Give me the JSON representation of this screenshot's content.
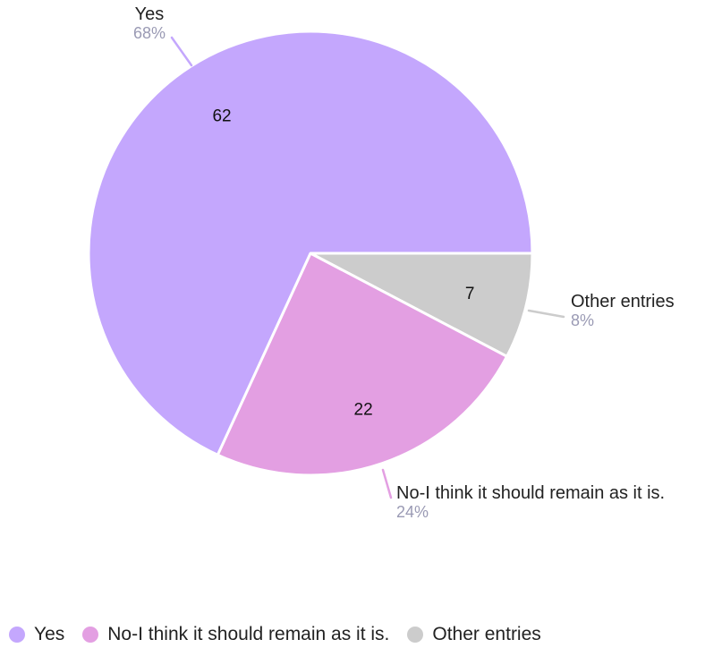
{
  "chart_data": {
    "type": "pie",
    "title": "",
    "slices": [
      {
        "label": "Yes",
        "value": 62,
        "percent": "68%",
        "color": "#c4a7fd"
      },
      {
        "label": "No-I think it should remain as it is.",
        "value": 22,
        "percent": "24%",
        "color": "#e39fe2"
      },
      {
        "label": "Other entries",
        "value": 7,
        "percent": "8%",
        "color": "#cccccc"
      }
    ],
    "legend_placement": "bottom-left",
    "start_angle": "3 o'clock, clockwise order: Other entries, No-I think it should remain as it is., Yes"
  },
  "legend": {
    "items": [
      {
        "label": "Yes",
        "color": "#c4a7fd"
      },
      {
        "label": "No-I think it should remain as it is.",
        "color": "#e39fe2"
      },
      {
        "label": "Other entries",
        "color": "#cccccc"
      }
    ]
  }
}
